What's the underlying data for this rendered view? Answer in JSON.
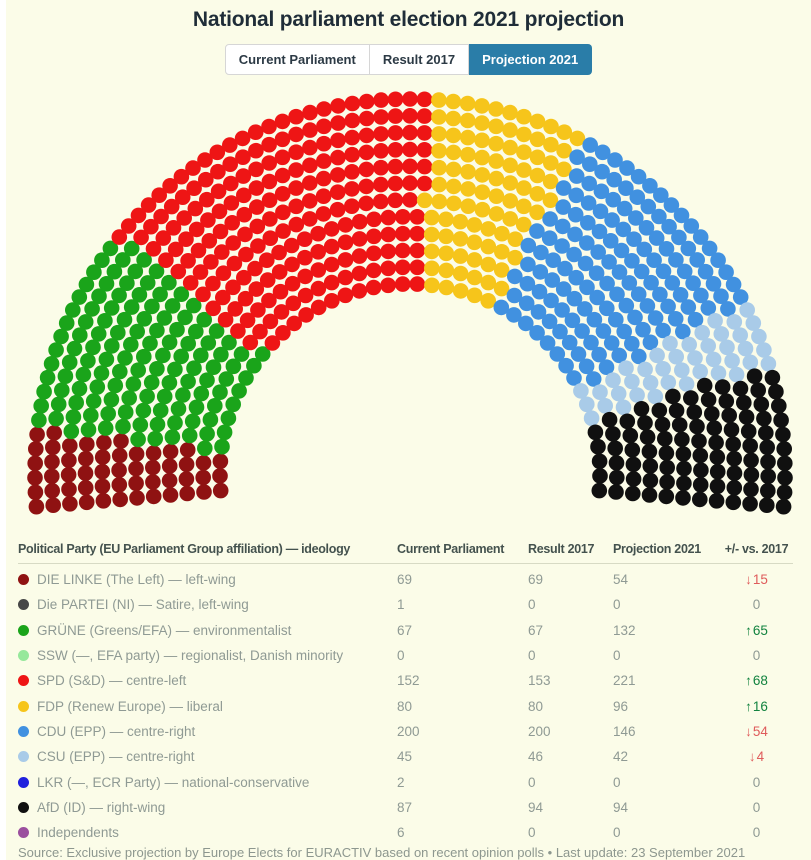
{
  "header": {
    "title": "National parliament election 2021 projection"
  },
  "tabs": [
    {
      "label": "Current Parliament",
      "active": false
    },
    {
      "label": "Result 2017",
      "active": false
    },
    {
      "label": "Projection 2021",
      "active": true
    }
  ],
  "chart_data": {
    "type": "parliament",
    "title": "National parliament election 2021 projection",
    "active_view": "Projection 2021",
    "total_seats": 785,
    "layout_hint": "half-donut hemicycle of seat dots, parties ordered left to right",
    "parties": [
      {
        "name": "DIE LINKE",
        "seats": 54,
        "color": "#8f1212"
      },
      {
        "name": "GRÜNE",
        "seats": 132,
        "color": "#1aa41a"
      },
      {
        "name": "SPD",
        "seats": 221,
        "color": "#ee1515"
      },
      {
        "name": "FDP",
        "seats": 96,
        "color": "#f6c51b"
      },
      {
        "name": "CDU",
        "seats": 146,
        "color": "#4191e0"
      },
      {
        "name": "CSU",
        "seats": 42,
        "color": "#a9cbe8"
      },
      {
        "name": "AfD",
        "seats": 94,
        "color": "#101010"
      }
    ]
  },
  "table": {
    "headers": [
      "Political Party (EU Parliament Group affiliation) — ideology",
      "Current Parliament",
      "Result 2017",
      "Projection 2021",
      "+/- vs. 2017"
    ],
    "rows": [
      {
        "party": "DIE LINKE (The Left) — left-wing",
        "dot_color": "#8f1212",
        "current_parliament": "69",
        "result_2017": "69",
        "projection_2021": "54",
        "change_vs_2017": -15
      },
      {
        "party": "Die PARTEI (NI) — Satire, left-wing",
        "dot_color": "#474747",
        "current_parliament": "1",
        "result_2017": "0",
        "projection_2021": "0",
        "change_vs_2017": 0
      },
      {
        "party": "GRÜNE (Greens/EFA) — environmentalist",
        "dot_color": "#1aa41a",
        "current_parliament": "67",
        "result_2017": "67",
        "projection_2021": "132",
        "change_vs_2017": 65
      },
      {
        "party": "SSW (—, EFA party) — regionalist, Danish minority",
        "dot_color": "#96e89b",
        "current_parliament": "0",
        "result_2017": "0",
        "projection_2021": "0",
        "change_vs_2017": 0
      },
      {
        "party": "SPD (S&D) — centre-left",
        "dot_color": "#ee1515",
        "current_parliament": "152",
        "result_2017": "153",
        "projection_2021": "221",
        "change_vs_2017": 68
      },
      {
        "party": "FDP (Renew Europe) — liberal",
        "dot_color": "#f6c51b",
        "current_parliament": "80",
        "result_2017": "80",
        "projection_2021": "96",
        "change_vs_2017": 16
      },
      {
        "party": "CDU (EPP) — centre-right",
        "dot_color": "#4191e0",
        "current_parliament": "200",
        "result_2017": "200",
        "projection_2021": "146",
        "change_vs_2017": -54
      },
      {
        "party": "CSU (EPP) — centre-right",
        "dot_color": "#a9cbe8",
        "current_parliament": "45",
        "result_2017": "46",
        "projection_2021": "42",
        "change_vs_2017": -4
      },
      {
        "party": "LKR (—, ECR Party) — national-conservative",
        "dot_color": "#2020dd",
        "current_parliament": "2",
        "result_2017": "0",
        "projection_2021": "0",
        "change_vs_2017": 0
      },
      {
        "party": "AfD (ID) — right-wing",
        "dot_color": "#101010",
        "current_parliament": "87",
        "result_2017": "94",
        "projection_2021": "94",
        "change_vs_2017": 0
      },
      {
        "party": "Independents",
        "dot_color": "#9b4f9e",
        "current_parliament": "6",
        "result_2017": "0",
        "projection_2021": "0",
        "change_vs_2017": 0
      }
    ]
  },
  "footer": {
    "text": "Source: Exclusive projection by Europe Elects for EURACTIV based on recent opinion polls • Last update: 23 September 2021"
  },
  "icons": {
    "increase": "↑",
    "decrease": "↓"
  },
  "colors": {
    "background": "#fbfce8",
    "active_tab": "#2a7da8",
    "positive_change": "#12833f",
    "negative_change": "#df5b5b",
    "body_text": "#8f9a94",
    "header_text": "#44524e",
    "title_text": "#1f2d38"
  }
}
